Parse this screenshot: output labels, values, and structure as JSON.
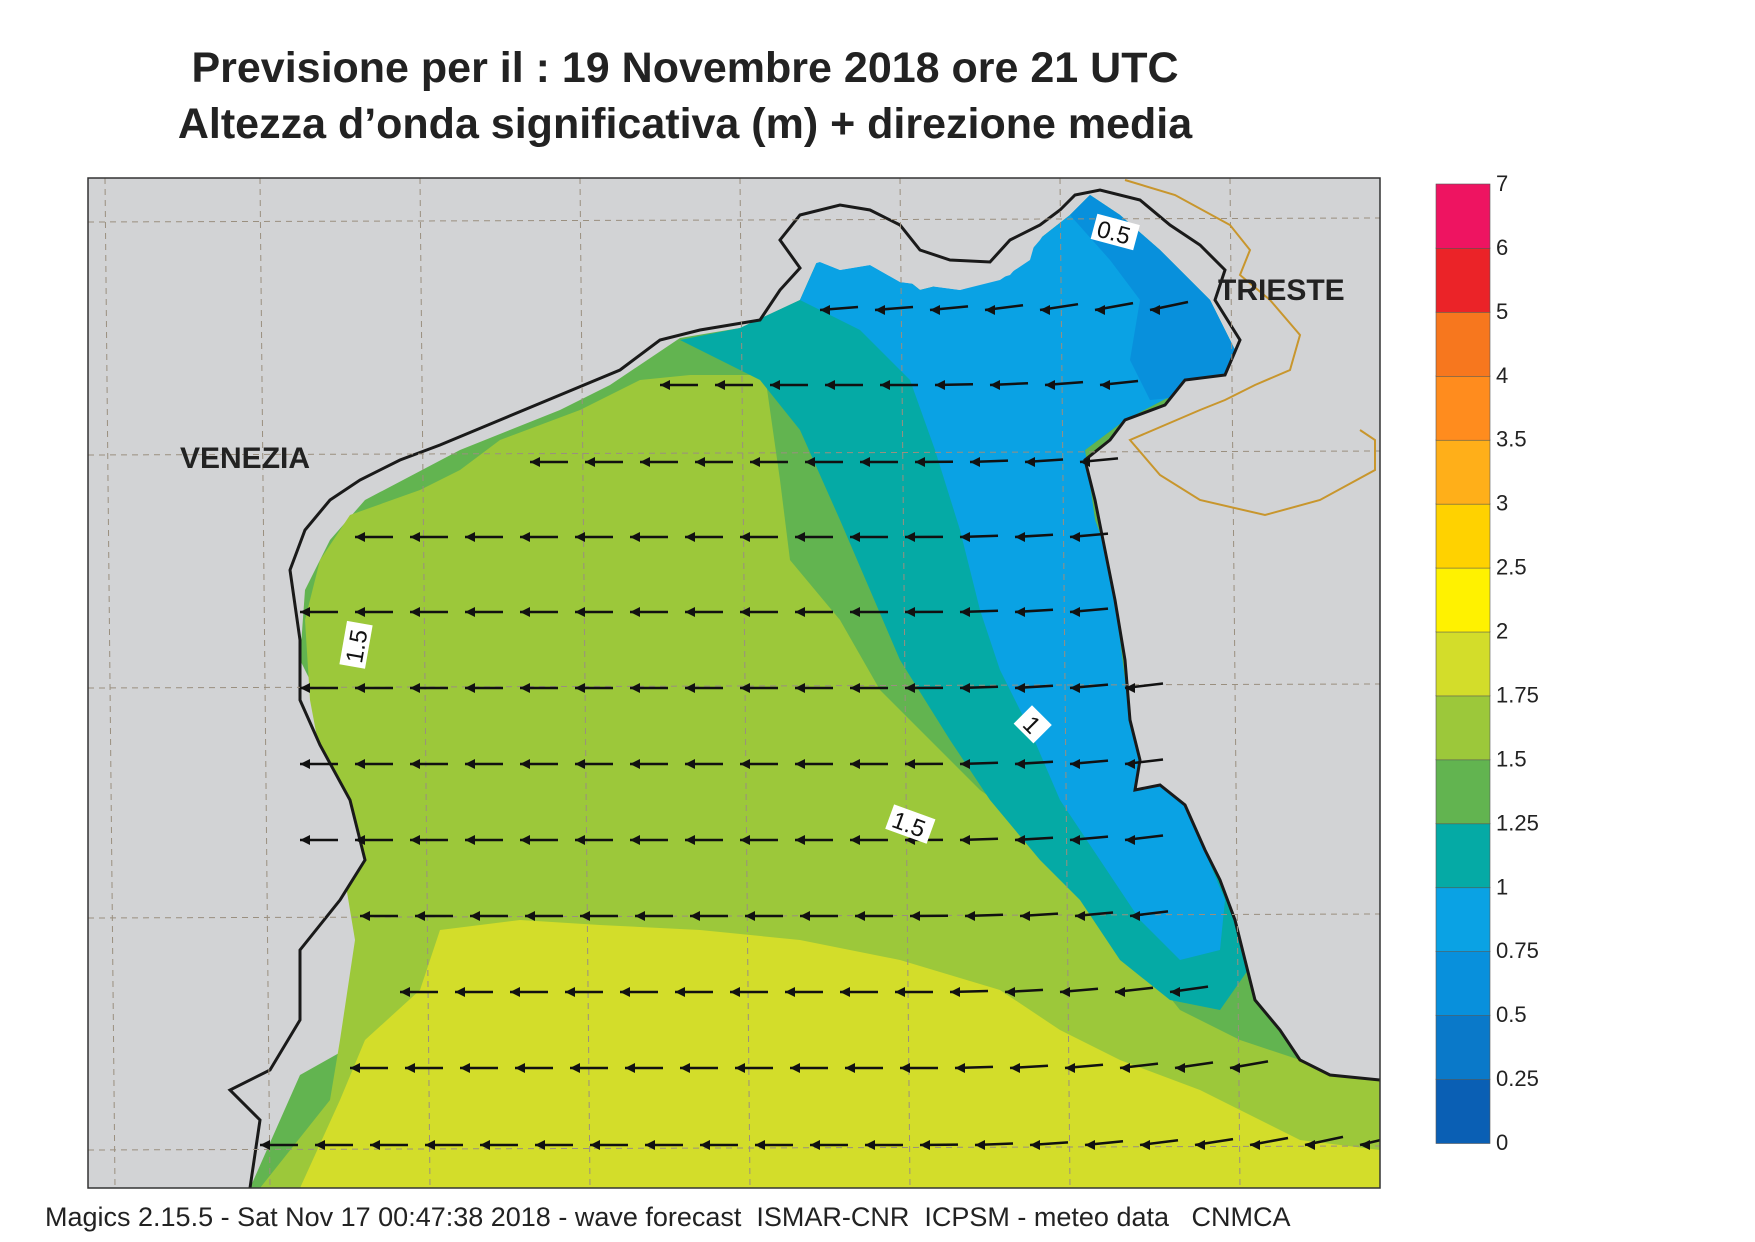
{
  "title": {
    "line1": "Previsione per il  :  19 Novembre  2018   ore 21 UTC",
    "line2": "Altezza d’onda significativa (m) + direzione media"
  },
  "places": {
    "venezia": "VENEZIA",
    "trieste": "TRIESTE"
  },
  "contour_labels": [
    "0.5",
    "1.5",
    "1",
    "1.5"
  ],
  "legend": {
    "levels": [
      "0",
      "0.25",
      "0.5",
      "0.75",
      "1",
      "1.25",
      "1.5",
      "1.75",
      "2",
      "2.5",
      "3",
      "3.5",
      "4",
      "5",
      "6",
      "7"
    ],
    "colors": [
      "#0a5fb4",
      "#0a79c9",
      "#0890dc",
      "#0aa2e4",
      "#05aaa5",
      "#62b450",
      "#9cc83a",
      "#d3dd2a",
      "#fff200",
      "#ffd200",
      "#ffaf19",
      "#ff8c1e",
      "#f7771e",
      "#eb2328",
      "#ee1461"
    ]
  },
  "colors": {
    "land": "#d2d3d5",
    "coast": "#1a1a1a",
    "border": "#c8962d",
    "grid": "#9a8f7f"
  },
  "footer": "Magics 2.15.5 - Sat Nov 17 00:47:38 2018 - wave forecast  ISMAR-CNR  ICPSM - meteo data   CNMCA"
}
